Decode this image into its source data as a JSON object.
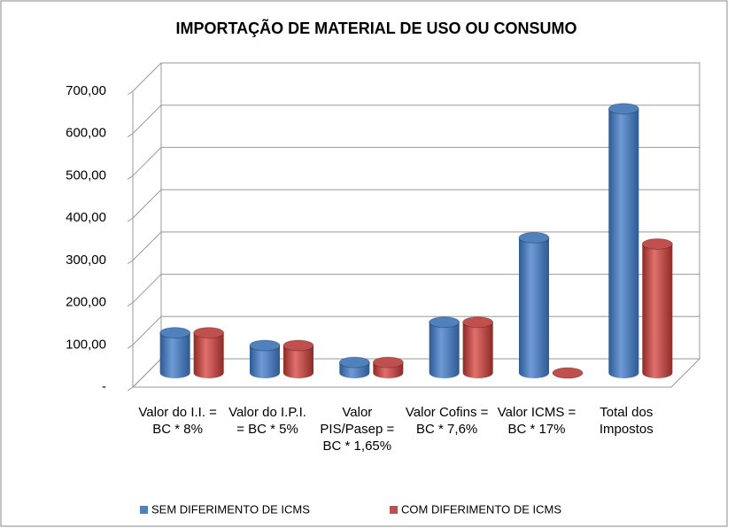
{
  "chart_data": {
    "type": "bar3d",
    "title": "IMPORTAÇÃO DE MATERIAL DE USO OU CONSUMO",
    "categories": [
      "Valor do I.I. = BC * 8%",
      "Valor do I.P.I. = BC * 5%",
      "Valor PIS/Pasep = BC * 1,65%",
      "Valor Cofins = BC * 7,6%",
      "Valor ICMS = BC * 17%",
      "Total dos Impostos"
    ],
    "series": [
      {
        "name": "SEM DIFERIMENTO DE ICMS",
        "color": "#4f81bd",
        "values": [
          95,
          65,
          25,
          120,
          320,
          625
        ]
      },
      {
        "name": "COM DIFERIMENTO DE ICMS",
        "color": "#c0504d",
        "values": [
          95,
          65,
          25,
          120,
          0,
          305
        ]
      }
    ],
    "ylim": [
      0,
      700
    ],
    "yticks": [
      {
        "value": 0,
        "label": "-"
      },
      {
        "value": 100,
        "label": "100,00"
      },
      {
        "value": 200,
        "label": "200,00"
      },
      {
        "value": 300,
        "label": "300,00"
      },
      {
        "value": 400,
        "label": "400,00"
      },
      {
        "value": 500,
        "label": "500,00"
      },
      {
        "value": 600,
        "label": "600,00"
      },
      {
        "value": 700,
        "label": "700,00"
      }
    ],
    "grid": true,
    "legend": "bottom"
  }
}
